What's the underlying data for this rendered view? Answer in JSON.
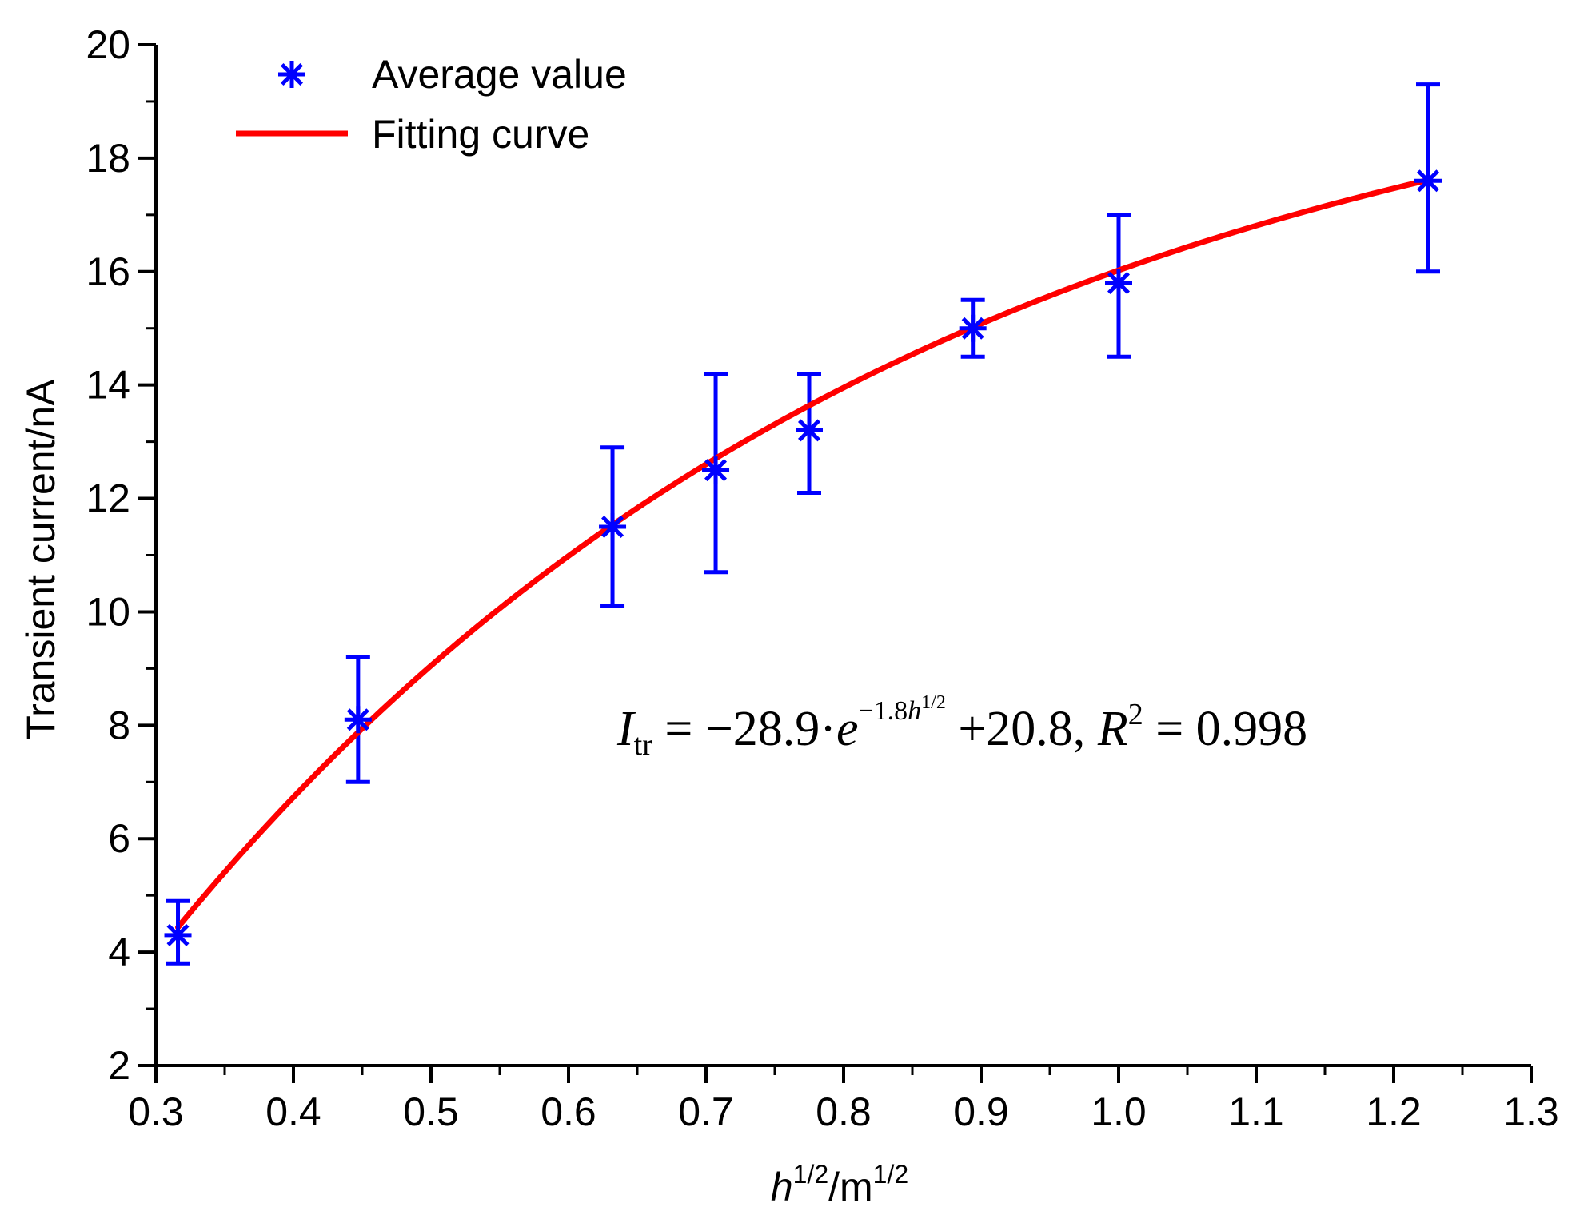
{
  "chart_data": {
    "type": "scatter",
    "title": "",
    "xlabel": {
      "base": "h",
      "sup1": "1/2",
      "mid": "/m",
      "sup2": "1/2"
    },
    "ylabel": "Transient current/nA",
    "xlim": [
      0.3,
      1.3
    ],
    "ylim": [
      2,
      20
    ],
    "x_ticks": [
      "0.3",
      "0.4",
      "0.5",
      "0.6",
      "0.7",
      "0.8",
      "0.9",
      "1.0",
      "1.1",
      "1.2",
      "1.3"
    ],
    "y_ticks": [
      "2",
      "4",
      "6",
      "8",
      "10",
      "12",
      "14",
      "16",
      "18",
      "20"
    ],
    "series": [
      {
        "name": "Average value",
        "kind": "scatter-errorbar",
        "color": "#0000ff",
        "x": [
          0.316,
          0.447,
          0.632,
          0.707,
          0.775,
          0.894,
          1.0,
          1.225
        ],
        "y": [
          4.3,
          8.1,
          11.5,
          12.5,
          13.2,
          15.0,
          15.8,
          17.6
        ],
        "err_low": [
          3.8,
          7.0,
          10.1,
          10.7,
          12.1,
          14.5,
          14.5,
          16.0
        ],
        "err_high": [
          4.9,
          9.2,
          12.9,
          14.2,
          14.2,
          15.5,
          17.0,
          19.3
        ]
      },
      {
        "name": "Fitting curve",
        "kind": "line",
        "color": "#ff0000",
        "formula": {
          "a": -28.9,
          "b": -1.8,
          "c": 20.8
        },
        "x_range": [
          0.316,
          1.225
        ]
      }
    ],
    "legend": {
      "position": "top-left",
      "entries": [
        "Average value",
        "Fitting curve"
      ]
    },
    "annotation": {
      "lhs": "I",
      "lhs_sub": "tr",
      "eq1": " = −28.9·",
      "e": "e",
      "exp": "−1.8",
      "exp_h": "h",
      "exp_sup": "1/2",
      "eq2": " +20.8, ",
      "r": "R",
      "r_sup": "2",
      "eq3": " = 0.998"
    }
  }
}
